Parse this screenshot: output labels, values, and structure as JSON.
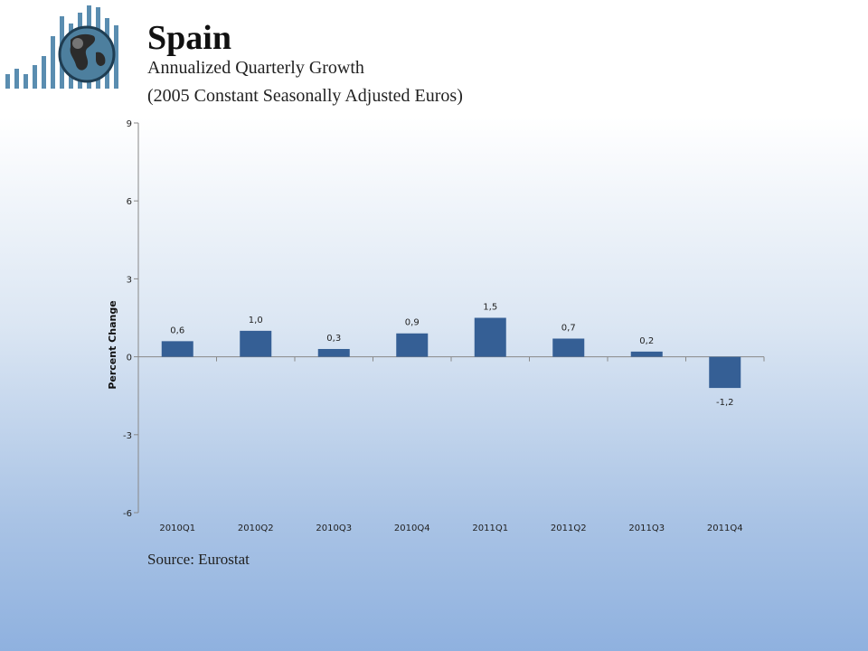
{
  "header": {
    "title": "Spain",
    "subtitle_line1": "Annualized Quarterly Growth",
    "subtitle_line2": "(2005 Constant Seasonally Adjusted Euros)"
  },
  "footer": {
    "source": "Source: Eurostat"
  },
  "colors": {
    "bar": "#355f95",
    "logo_bar": "#5a8db0",
    "axis": "#888888"
  },
  "chart_data": {
    "type": "bar",
    "categories": [
      "2010Q1",
      "2010Q2",
      "2010Q3",
      "2010Q4",
      "2011Q1",
      "2011Q2",
      "2011Q3",
      "2011Q4"
    ],
    "values": [
      0.6,
      1.0,
      0.3,
      0.9,
      1.5,
      0.7,
      0.2,
      -1.2
    ],
    "data_labels": [
      "0,6",
      "1,0",
      "0,3",
      "0,9",
      "1,5",
      "0,7",
      "0,2",
      "-1,2"
    ],
    "ylabel": "Percent Change",
    "ylim": [
      -6,
      9
    ],
    "yticks": [
      9,
      6,
      3,
      0,
      -3,
      -6
    ],
    "grid": false,
    "legend": "none"
  }
}
